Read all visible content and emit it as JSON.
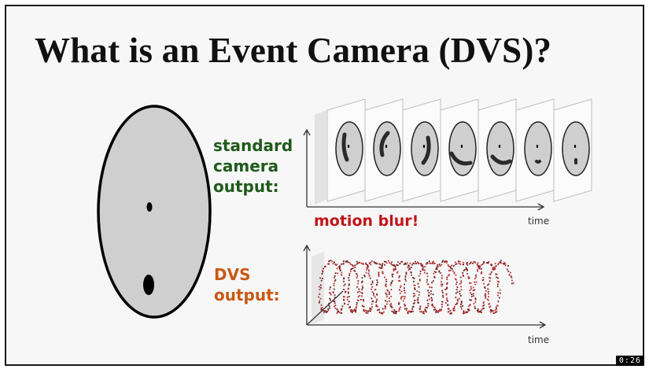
{
  "slide": {
    "title": "What is an Event Camera (DVS)?",
    "standard_label": [
      "standard",
      "camera",
      "output:"
    ],
    "dvs_label": [
      "DVS",
      "output:"
    ],
    "blur_note": "motion blur!",
    "time_top": "time",
    "time_bottom": "time"
  },
  "video": {
    "timestamp": "0:26"
  },
  "colors": {
    "standard_label": "#1f5a1a",
    "dvs_label": "#c85a14",
    "blur_note": "#c0151a",
    "disk_fill": "#cfcfcf",
    "event_dots": "#b83232"
  }
}
